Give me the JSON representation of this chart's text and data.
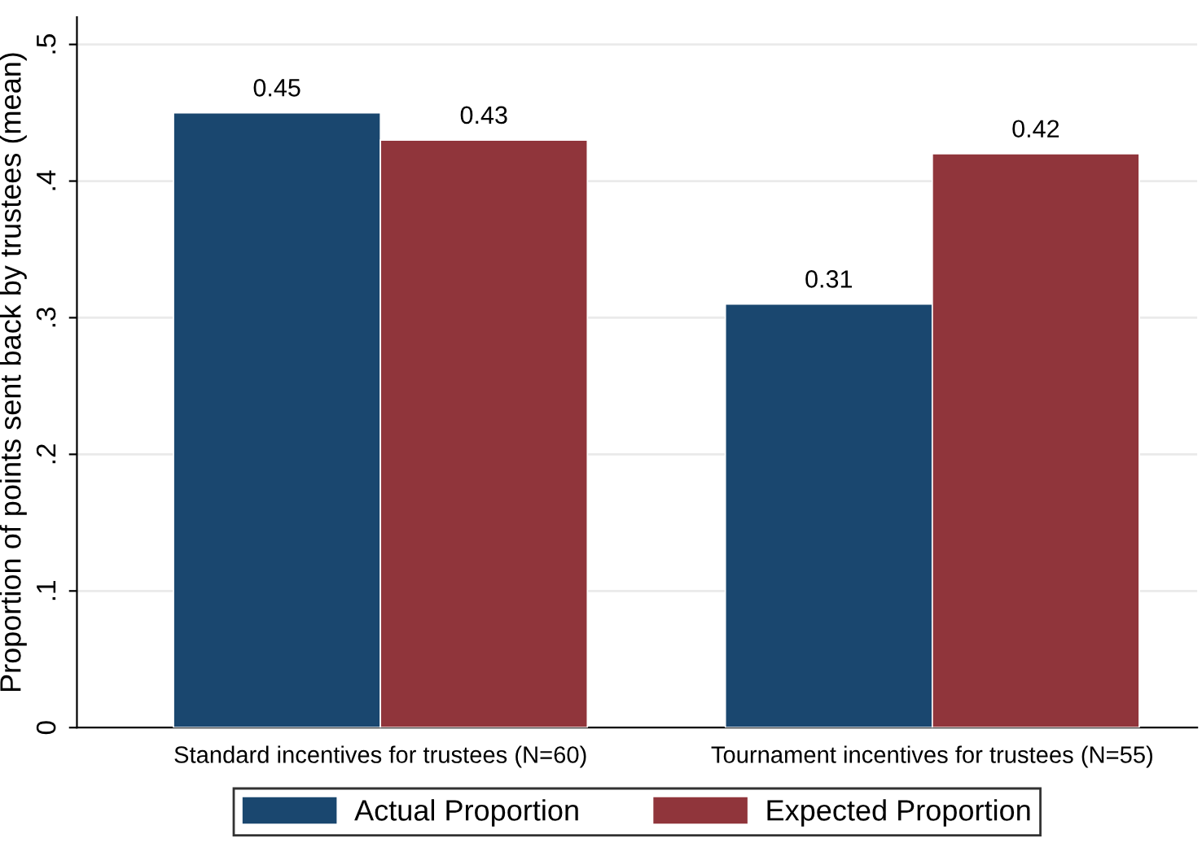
{
  "chart_data": {
    "type": "bar",
    "ylabel": "Proportion of points sent back by trustees (mean)",
    "categories": [
      "Standard incentives for trustees (N=60)",
      "Tournament incentives for trustees (N=55)"
    ],
    "series": [
      {
        "name": "Actual Proportion",
        "color": "#1a476f",
        "values": [
          0.45,
          0.31
        ]
      },
      {
        "name": "Expected Proportion",
        "color": "#90353b",
        "values": [
          0.43,
          0.42
        ]
      }
    ],
    "ylim": [
      0,
      0.52
    ],
    "yticks": [
      0,
      {
        "value": 0.1,
        "label": ".1"
      },
      {
        "value": 0.2,
        "label": ".2"
      },
      {
        "value": 0.3,
        "label": ".3"
      },
      {
        "value": 0.4,
        "label": ".4"
      },
      {
        "value": 0.5,
        "label": ".5"
      }
    ],
    "grid": "y",
    "legend": "bottom",
    "data_labels": true
  }
}
